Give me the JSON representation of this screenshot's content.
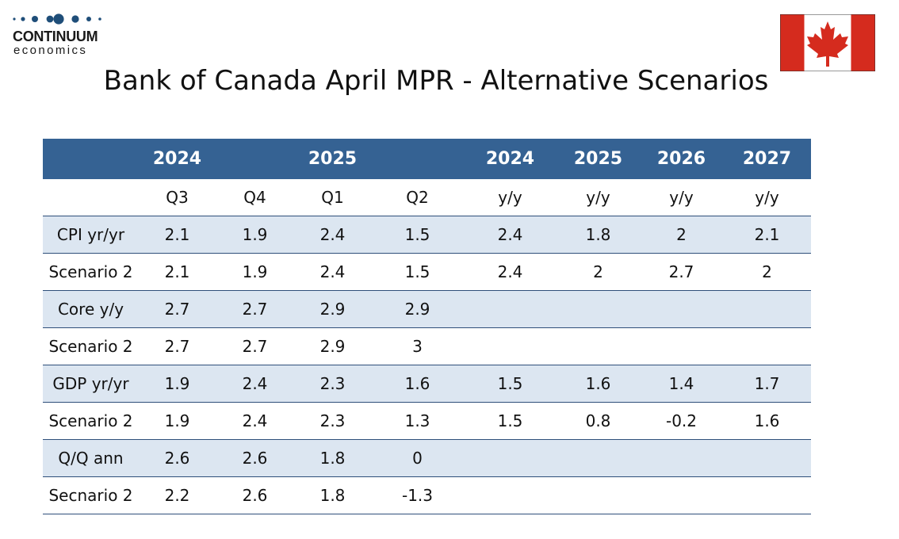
{
  "logo": {
    "name": "CONTINUUM",
    "sub": "economics",
    "dots_icon": "logo-dots-icon",
    "colors": {
      "dots": "#1f4e79",
      "text": "#1a1a1a"
    }
  },
  "flag": {
    "icon": "canada-flag-icon",
    "colors": {
      "red": "#d52b1e",
      "white": "#ffffff"
    }
  },
  "title": "Bank of Canada April MPR - Alternative Scenarios",
  "chart_data": {
    "type": "table",
    "header_years": [
      "2024",
      "",
      "2025",
      "",
      "2024",
      "2025",
      "2026",
      "2027"
    ],
    "header_periods": [
      "Q3",
      "Q4",
      "Q1",
      "Q2",
      "y/y",
      "y/y",
      "y/y",
      "y/y"
    ],
    "rows": [
      {
        "label": "CPI yr/yr",
        "values": [
          "2.1",
          "1.9",
          "2.4",
          "1.5",
          "2.4",
          "1.8",
          "2",
          "2.1"
        ]
      },
      {
        "label": "Scenario 2",
        "values": [
          "2.1",
          "1.9",
          "2.4",
          "1.5",
          "2.4",
          "2",
          "2.7",
          "2"
        ]
      },
      {
        "label": "Core y/y",
        "values": [
          "2.7",
          "2.7",
          "2.9",
          "2.9",
          "",
          "",
          "",
          ""
        ]
      },
      {
        "label": "Scenario 2",
        "values": [
          "2.7",
          "2.7",
          "2.9",
          "3",
          "",
          "",
          "",
          ""
        ]
      },
      {
        "label": "GDP yr/yr",
        "values": [
          "1.9",
          "2.4",
          "2.3",
          "1.6",
          "1.5",
          "1.6",
          "1.4",
          "1.7"
        ]
      },
      {
        "label": "Scenario 2",
        "values": [
          "1.9",
          "2.4",
          "2.3",
          "1.3",
          "1.5",
          "0.8",
          "-0.2",
          "1.6"
        ]
      },
      {
        "label": "Q/Q ann",
        "values": [
          "2.6",
          "2.6",
          "1.8",
          "0",
          "",
          "",
          "",
          ""
        ]
      },
      {
        "label": "Secnario 2",
        "values": [
          "2.2",
          "2.6",
          "1.8",
          "-1.3",
          "",
          "",
          "",
          ""
        ]
      }
    ],
    "colors": {
      "header": "#356293",
      "shaded_row": "#dce6f1",
      "rule": "#2f4f7a"
    }
  }
}
